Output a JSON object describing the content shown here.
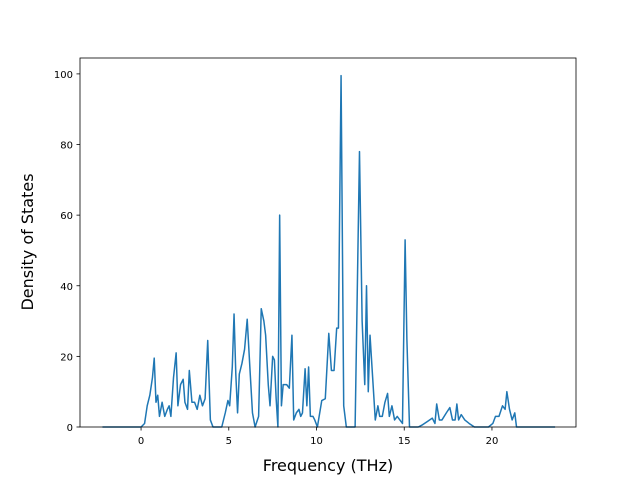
{
  "chart_data": {
    "type": "line",
    "xlabel": "Frequency (THz)",
    "ylabel": "Density of States",
    "color": "#1f77b4",
    "x": [
      -2.2,
      -1,
      0,
      0.2,
      0.35,
      0.5,
      0.65,
      0.75,
      0.85,
      0.95,
      1.05,
      1.2,
      1.35,
      1.5,
      1.6,
      1.7,
      1.85,
      2.0,
      2.1,
      2.25,
      2.4,
      2.5,
      2.65,
      2.75,
      2.9,
      3.05,
      3.2,
      3.35,
      3.5,
      3.65,
      3.8,
      3.95,
      4.1,
      4.6,
      4.8,
      4.95,
      5.05,
      5.2,
      5.3,
      5.4,
      5.5,
      5.6,
      5.75,
      5.9,
      6.05,
      6.2,
      6.35,
      6.5,
      6.7,
      6.85,
      7.0,
      7.1,
      7.25,
      7.35,
      7.5,
      7.6,
      7.7,
      7.8,
      7.9,
      8.0,
      8.1,
      8.3,
      8.45,
      8.6,
      8.7,
      8.85,
      9.0,
      9.1,
      9.2,
      9.35,
      9.45,
      9.55,
      9.65,
      9.8,
      9.9,
      10.05,
      10.3,
      10.5,
      10.7,
      10.85,
      11.0,
      11.15,
      11.25,
      11.4,
      11.55,
      11.7,
      12.2,
      12.45,
      12.6,
      12.75,
      12.85,
      12.95,
      13.05,
      13.2,
      13.35,
      13.5,
      13.6,
      13.75,
      13.9,
      14.05,
      14.15,
      14.3,
      14.45,
      14.6,
      14.75,
      14.9,
      15.05,
      15.15,
      15.3,
      15.8,
      16.0,
      16.3,
      16.6,
      16.75,
      16.85,
      17.0,
      17.15,
      17.4,
      17.6,
      17.75,
      17.9,
      18.0,
      18.1,
      18.25,
      18.45,
      18.7,
      19.0,
      19.8,
      20.05,
      20.2,
      20.4,
      20.6,
      20.75,
      20.85,
      21.0,
      21.15,
      21.3,
      21.4,
      21.7,
      23.6
    ],
    "values": [
      0,
      0,
      0,
      1,
      6,
      9,
      14,
      19.5,
      7,
      9,
      3,
      7,
      3,
      5,
      6,
      3,
      14,
      21,
      6,
      12,
      13.5,
      7,
      5,
      16,
      7,
      7,
      5,
      9,
      6,
      8,
      24.5,
      2,
      0,
      0,
      4,
      7.5,
      6,
      17,
      32,
      15,
      4,
      15,
      18,
      22,
      30.5,
      17,
      4,
      0,
      3,
      33.5,
      30,
      26,
      12,
      6,
      20,
      19,
      8,
      0,
      60,
      6,
      12,
      12,
      11,
      26,
      2,
      4,
      5,
      3,
      4,
      16.5,
      6,
      17,
      3,
      3,
      2,
      0,
      7.5,
      8,
      26.5,
      16,
      16,
      28,
      28,
      99.5,
      6,
      0,
      0,
      78,
      30,
      12,
      40,
      10,
      26,
      14,
      2,
      6,
      3,
      3,
      7,
      9.5,
      3,
      6,
      2,
      3,
      2,
      1,
      53,
      25,
      0,
      0,
      0.5,
      1.5,
      2.5,
      1,
      6.5,
      2,
      2,
      4,
      5.5,
      2,
      2,
      6.5,
      2,
      3.5,
      2,
      1,
      0,
      0,
      1,
      3,
      3,
      6,
      5,
      10,
      5,
      2,
      4,
      0,
      0,
      0
    ],
    "xlim": [
      -3.48,
      24.79
    ],
    "ylim": [
      0,
      104.5
    ],
    "xticks": [
      0,
      5,
      10,
      15,
      20
    ],
    "yticks": [
      0,
      20,
      40,
      60,
      80,
      100
    ]
  }
}
